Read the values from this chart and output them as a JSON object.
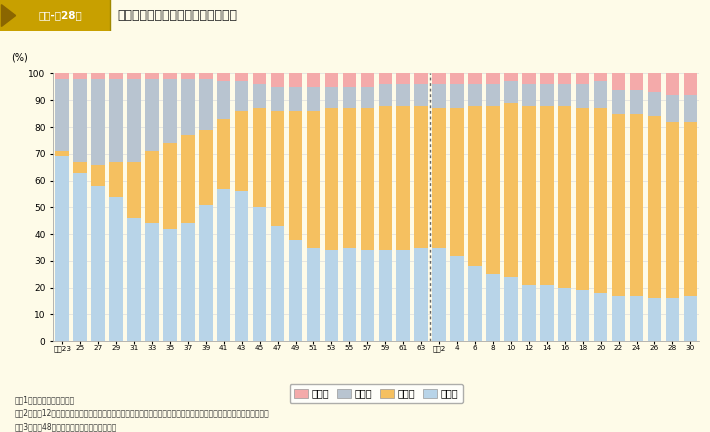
{
  "title": "車種別自動車保有台数構成率の推移",
  "title_prefix": "特集-第28図",
  "ylabel": "(%)",
  "background_color": "#FEFBE8",
  "colors": {
    "sonota": "#F4AAAA",
    "nirin": "#B8C4D0",
    "joyosha": "#F5C060",
    "kamotsu": "#B8D4E8"
  },
  "legend_labels": [
    "その他",
    "二輪車",
    "乗用車",
    "貨物車"
  ],
  "notes": [
    "警察庁資料による。",
    "各年12月末現在の値である。保有台数には第１種及び第２種原動機付自転車並びに小型特殊自動車を含まない。",
    "昭和48年以前は、沖縄県を含まない。"
  ],
  "year_labels": [
    "昭和23",
    "25",
    "27",
    "29",
    "31",
    "33",
    "35",
    "37",
    "39",
    "41",
    "43",
    "45",
    "47",
    "49",
    "51",
    "53",
    "55",
    "57",
    "59",
    "61",
    "63",
    "平成2",
    "4",
    "6",
    "8",
    "10",
    "12",
    "14",
    "16",
    "18",
    "20",
    "22",
    "24",
    "26",
    "28",
    "30"
  ],
  "kamotsu": [
    69,
    63,
    58,
    54,
    46,
    44,
    42,
    44,
    51,
    57,
    56,
    50,
    43,
    38,
    35,
    34,
    35,
    34,
    34,
    34,
    35,
    35,
    32,
    28,
    25,
    24,
    21,
    21,
    20,
    19,
    18,
    17,
    17,
    16,
    16,
    17
  ],
  "joyosha": [
    2,
    4,
    8,
    13,
    21,
    27,
    32,
    33,
    28,
    26,
    30,
    37,
    43,
    48,
    51,
    53,
    52,
    53,
    54,
    54,
    53,
    52,
    55,
    60,
    63,
    65,
    67,
    67,
    68,
    68,
    69,
    68,
    68,
    68,
    66,
    65
  ],
  "nirin": [
    27,
    31,
    32,
    31,
    31,
    27,
    24,
    21,
    19,
    14,
    11,
    9,
    9,
    9,
    9,
    8,
    8,
    8,
    8,
    8,
    8,
    9,
    9,
    8,
    8,
    8,
    8,
    8,
    8,
    9,
    10,
    9,
    9,
    9,
    10,
    10
  ],
  "sonota": [
    2,
    2,
    2,
    2,
    2,
    2,
    2,
    2,
    2,
    3,
    3,
    4,
    5,
    5,
    5,
    5,
    5,
    5,
    4,
    4,
    4,
    4,
    4,
    4,
    4,
    3,
    4,
    4,
    4,
    4,
    3,
    6,
    6,
    7,
    8,
    8
  ]
}
